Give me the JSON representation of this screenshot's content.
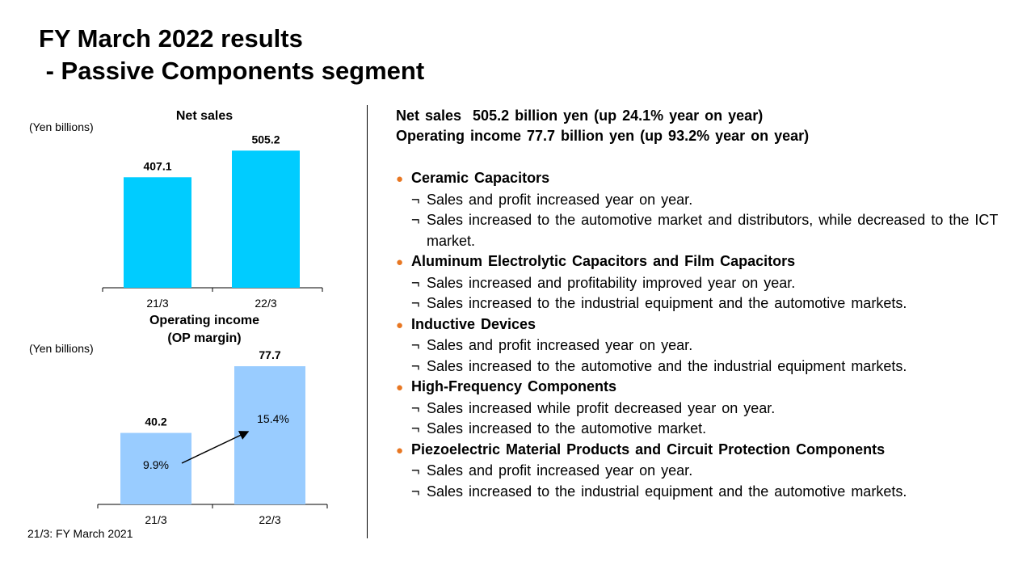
{
  "title": {
    "line1": "FY March 2022 results",
    "line2": " - Passive Components segment"
  },
  "footnote": "21/3: FY March 2021",
  "chart_data": [
    {
      "type": "bar",
      "title": "Net sales",
      "unit": "(Yen billions)",
      "categories": [
        "21/3",
        "22/3"
      ],
      "values": [
        407.1,
        505.2
      ],
      "value_labels": [
        "407.1",
        "505.2"
      ],
      "ylim": [
        0,
        530
      ],
      "color": "#00ccff"
    },
    {
      "type": "bar",
      "title_line1": "Operating income",
      "title_line2": "(OP margin)",
      "unit": "(Yen billions)",
      "categories": [
        "21/3",
        "22/3"
      ],
      "values": [
        40.2,
        77.7
      ],
      "value_labels": [
        "40.2",
        "77.7"
      ],
      "margins": [
        "9.9%",
        "15.4%"
      ],
      "ylim": [
        0,
        80
      ],
      "color": "#99ccff"
    }
  ],
  "summary": {
    "line1": "Net sales  505.2 billion yen (up 24.1% year on year)",
    "line2": "Operating income 77.7 billion yen (up 93.2% year on year)"
  },
  "bullet_char": "●",
  "item_mark": "¬",
  "sections": [
    {
      "heading": "Ceramic Capacitors",
      "items": [
        "Sales and profit increased year on year.",
        "Sales increased to the automotive market and distributors, while decreased to the ICT market."
      ]
    },
    {
      "heading": "Aluminum Electrolytic Capacitors and Film Capacitors",
      "items": [
        "Sales increased and profitability improved year on year.",
        "Sales increased to the industrial equipment and the automotive markets."
      ]
    },
    {
      "heading": "Inductive Devices",
      "items": [
        "Sales and profit increased year on year.",
        "Sales increased to the automotive and the industrial equipment markets."
      ]
    },
    {
      "heading": "High-Frequency Components",
      "items": [
        "Sales increased while profit decreased year on year.",
        "Sales increased to the automotive market."
      ]
    },
    {
      "heading": "Piezoelectric Material Products and Circuit Protection Components",
      "items": [
        "Sales and profit increased year on year.",
        "Sales increased to the industrial equipment and the automotive markets."
      ]
    }
  ]
}
